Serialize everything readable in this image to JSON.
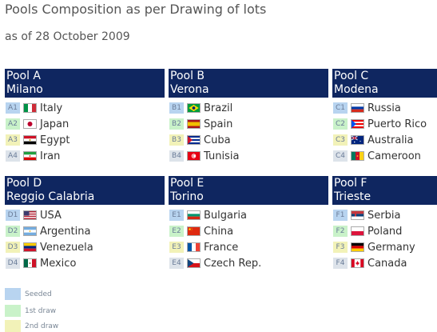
{
  "title": "Pools Composition as per Drawing of lots",
  "subtitle": "as of 28 October 2009",
  "colors": {
    "header_bg": "#0f2660",
    "seeded": "#b8d4f0",
    "first_draw": "#c9f2c9",
    "second_draw": "#f2f2b8",
    "fourth": "#dde3ea"
  },
  "pools": [
    {
      "name": "Pool A",
      "city": "Milano",
      "teams": [
        {
          "seed": "A1",
          "country": "Italy",
          "flag": "italy-flag-icon"
        },
        {
          "seed": "A2",
          "country": "Japan",
          "flag": "japan-flag-icon"
        },
        {
          "seed": "A3",
          "country": "Egypt",
          "flag": "egypt-flag-icon"
        },
        {
          "seed": "A4",
          "country": "Iran",
          "flag": "iran-flag-icon"
        }
      ]
    },
    {
      "name": "Pool B",
      "city": "Verona",
      "teams": [
        {
          "seed": "B1",
          "country": "Brazil",
          "flag": "brazil-flag-icon"
        },
        {
          "seed": "B2",
          "country": "Spain",
          "flag": "spain-flag-icon"
        },
        {
          "seed": "B3",
          "country": "Cuba",
          "flag": "cuba-flag-icon"
        },
        {
          "seed": "B4",
          "country": "Tunisia",
          "flag": "tunisia-flag-icon"
        }
      ]
    },
    {
      "name": "Pool C",
      "city": "Modena",
      "teams": [
        {
          "seed": "C1",
          "country": "Russia",
          "flag": "russia-flag-icon"
        },
        {
          "seed": "C2",
          "country": "Puerto Rico",
          "flag": "puerto-rico-flag-icon"
        },
        {
          "seed": "C3",
          "country": "Australia",
          "flag": "australia-flag-icon"
        },
        {
          "seed": "C4",
          "country": "Cameroon",
          "flag": "cameroon-flag-icon"
        }
      ]
    },
    {
      "name": "Pool D",
      "city": "Reggio Calabria",
      "teams": [
        {
          "seed": "D1",
          "country": "USA",
          "flag": "usa-flag-icon"
        },
        {
          "seed": "D2",
          "country": "Argentina",
          "flag": "argentina-flag-icon"
        },
        {
          "seed": "D3",
          "country": "Venezuela",
          "flag": "venezuela-flag-icon"
        },
        {
          "seed": "D4",
          "country": "Mexico",
          "flag": "mexico-flag-icon"
        }
      ]
    },
    {
      "name": "Pool E",
      "city": "Torino",
      "teams": [
        {
          "seed": "E1",
          "country": "Bulgaria",
          "flag": "bulgaria-flag-icon"
        },
        {
          "seed": "E2",
          "country": "China",
          "flag": "china-flag-icon"
        },
        {
          "seed": "E3",
          "country": "France",
          "flag": "france-flag-icon"
        },
        {
          "seed": "E4",
          "country": "Czech Rep.",
          "flag": "czech-flag-icon"
        }
      ]
    },
    {
      "name": "Pool F",
      "city": "Trieste",
      "teams": [
        {
          "seed": "F1",
          "country": "Serbia",
          "flag": "serbia-flag-icon"
        },
        {
          "seed": "F2",
          "country": "Poland",
          "flag": "poland-flag-icon"
        },
        {
          "seed": "F3",
          "country": "Germany",
          "flag": "germany-flag-icon"
        },
        {
          "seed": "F4",
          "country": "Canada",
          "flag": "canada-flag-icon"
        }
      ]
    }
  ],
  "legend": {
    "seeded": "Seeded",
    "first_draw": "1st draw",
    "second_draw": "2nd draw"
  }
}
